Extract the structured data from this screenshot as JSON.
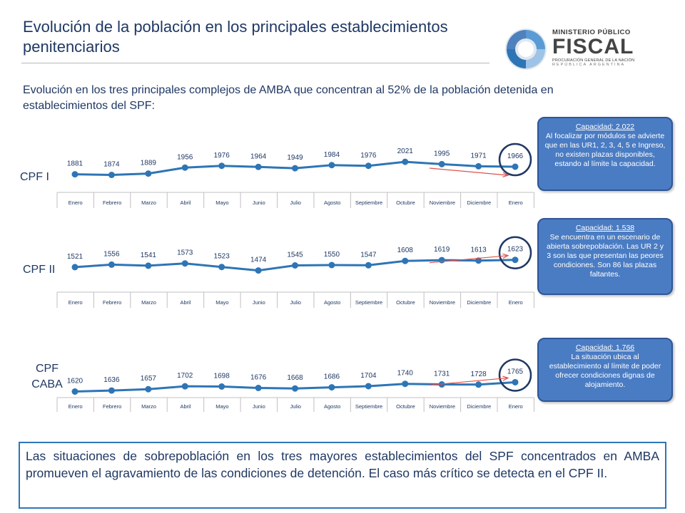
{
  "title": "Evolución de la población en los principales establecimientos penitenciarios",
  "subtitle": "Evolución en los tres principales complejos de AMBA que concentran al 52% de la población detenida en establecimientos del SPF:",
  "logo": {
    "line1": "MINISTERIO PÚBLICO",
    "line2": "FISCAL",
    "line3": "PROCURACIÓN GENERAL DE LA NACIÓN",
    "line4": "REPÚBLICA ARGENTINA"
  },
  "colors": {
    "line": "#2e75b6",
    "marker": "#2e75b6",
    "highlight_ring": "#203864",
    "arrow": "#e0504b",
    "callout": "#4a7cc3"
  },
  "chart_data": [
    {
      "type": "line",
      "label": "CPF I",
      "categories": [
        "Enero",
        "Febrero",
        "Marzo",
        "Abril",
        "Mayo",
        "Junio",
        "Julio",
        "Agosto",
        "Septiembre",
        "Octubre",
        "Noviembre",
        "Diciembre",
        "Enero"
      ],
      "values": [
        1881,
        1874,
        1889,
        1956,
        1976,
        1964,
        1949,
        1984,
        1976,
        2021,
        1995,
        1971,
        1966
      ],
      "highlight_last": true
    },
    {
      "type": "line",
      "label": "CPF II",
      "categories": [
        "Enero",
        "Febrero",
        "Marzo",
        "Abril",
        "Mayo",
        "Junio",
        "Julio",
        "Agosto",
        "Septiembre",
        "Octubre",
        "Noviembre",
        "Diciembre",
        "Enero"
      ],
      "values": [
        1521,
        1556,
        1541,
        1573,
        1523,
        1474,
        1545,
        1550,
        1547,
        1608,
        1619,
        1613,
        1623
      ],
      "highlight_last": true
    },
    {
      "type": "line",
      "label": "CPF CABA",
      "categories": [
        "Enero",
        "Febrero",
        "Marzo",
        "Abril",
        "Mayo",
        "Junio",
        "Julio",
        "Agosto",
        "Septiembre",
        "Octubre",
        "Noviembre",
        "Diciembre",
        "Enero"
      ],
      "values": [
        1620,
        1636,
        1657,
        1702,
        1698,
        1676,
        1668,
        1686,
        1704,
        1740,
        1731,
        1728,
        1765
      ],
      "highlight_last": true
    }
  ],
  "callouts": [
    {
      "capacity": "Capacidad: 2.022",
      "text": "Al focalizar por módulos se advierte que en las UR1, 2, 3, 4, 5 e Ingreso, no existen plazas disponibles, estando al límite la capacidad."
    },
    {
      "capacity": "Capacidad: 1.538",
      "text": "Se encuentra en un escenario de abierta sobrepoblación. Las UR 2 y 3 son las que presentan las peores condiciones. Son 86 las plazas faltantes."
    },
    {
      "capacity": "Capacidad: 1.766",
      "text": "La situación ubica al establecimiento al límite de poder ofrecer condiciones dignas de alojamiento."
    }
  ],
  "conclusion": "Las situaciones de sobrepoblación en los tres mayores establecimientos del SPF concentrados en AMBA promueven el agravamiento de las condiciones de detención. El caso más crítico se detecta en el CPF II."
}
